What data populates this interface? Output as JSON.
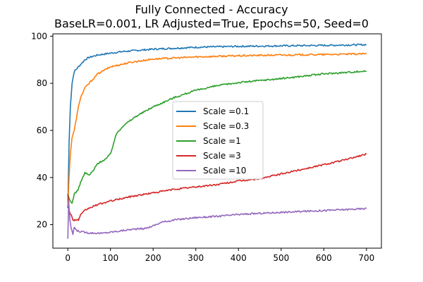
{
  "chart_data": {
    "type": "line",
    "title": "Fully Connected - Accuracy",
    "subtitle": "BaseLR=0.001, LR Adjusted=True, Epochs=50, Seed=0",
    "xlabel": "",
    "ylabel": "",
    "xlim": [
      -35,
      735
    ],
    "ylim": [
      10,
      101
    ],
    "xticks": [
      0,
      100,
      200,
      300,
      400,
      500,
      600,
      700
    ],
    "yticks": [
      20,
      40,
      60,
      80,
      100
    ],
    "grid": false,
    "legend_position": "center",
    "series": [
      {
        "name": "Scale =0.1",
        "color": "#1f77b4",
        "x": [
          0,
          3,
          6,
          10,
          15,
          20,
          30,
          40,
          50,
          70,
          100,
          130,
          200,
          300,
          400,
          500,
          600,
          700
        ],
        "y": [
          27,
          55,
          70,
          80,
          85,
          86,
          88,
          90,
          91,
          92,
          92.8,
          93.5,
          94.5,
          95.3,
          95.7,
          95.9,
          96.1,
          96.4
        ]
      },
      {
        "name": "Scale =0.3",
        "color": "#ff7f0e",
        "x": [
          0,
          3,
          6,
          10,
          15,
          20,
          25,
          30,
          40,
          50,
          70,
          100,
          150,
          200,
          300,
          400,
          500,
          600,
          700
        ],
        "y": [
          28,
          40,
          50,
          57,
          60,
          65,
          70,
          74,
          78,
          80,
          84,
          87,
          89,
          90.3,
          91.2,
          91.7,
          92,
          92.2,
          92.5
        ]
      },
      {
        "name": "Scale =1",
        "color": "#2ca02c",
        "x": [
          0,
          5,
          10,
          15,
          25,
          30,
          40,
          50,
          60,
          70,
          90,
          100,
          108,
          115,
          130,
          160,
          180,
          200,
          250,
          300,
          350,
          400,
          450,
          500,
          550,
          600,
          650,
          700
        ],
        "y": [
          33,
          30,
          29,
          33,
          35,
          38,
          42,
          41,
          43,
          46,
          48,
          50,
          55,
          59,
          62,
          66,
          68,
          70,
          74,
          77,
          79,
          80.3,
          81.2,
          82,
          83,
          84,
          84.6,
          85.2
        ]
      },
      {
        "name": "Scale =3",
        "color": "#d62728",
        "x": [
          0,
          3,
          8,
          12,
          15,
          20,
          25,
          30,
          40,
          50,
          70,
          100,
          150,
          200,
          250,
          300,
          350,
          400,
          450,
          500,
          550,
          600,
          650,
          700
        ],
        "y": [
          33,
          26,
          24,
          22,
          22,
          22,
          22,
          24,
          26,
          27,
          28.5,
          30,
          32,
          33.5,
          35,
          36,
          37,
          38.5,
          39.5,
          41.5,
          43.5,
          45.5,
          47.5,
          50
        ]
      },
      {
        "name": "Scale =10",
        "color": "#9467bd",
        "x": [
          0,
          2,
          5,
          8,
          12,
          15,
          20,
          30,
          50,
          80,
          100,
          130,
          150,
          180,
          200,
          220,
          250,
          300,
          350,
          400,
          450,
          500,
          550,
          600,
          650,
          700
        ],
        "y": [
          14,
          30,
          22,
          18,
          16,
          19,
          17.5,
          17,
          16.5,
          16.3,
          16.8,
          17.5,
          18,
          18.3,
          19.5,
          21,
          22,
          23,
          23.5,
          24.3,
          24.8,
          25.2,
          25.6,
          26,
          26.4,
          26.8
        ]
      }
    ]
  }
}
